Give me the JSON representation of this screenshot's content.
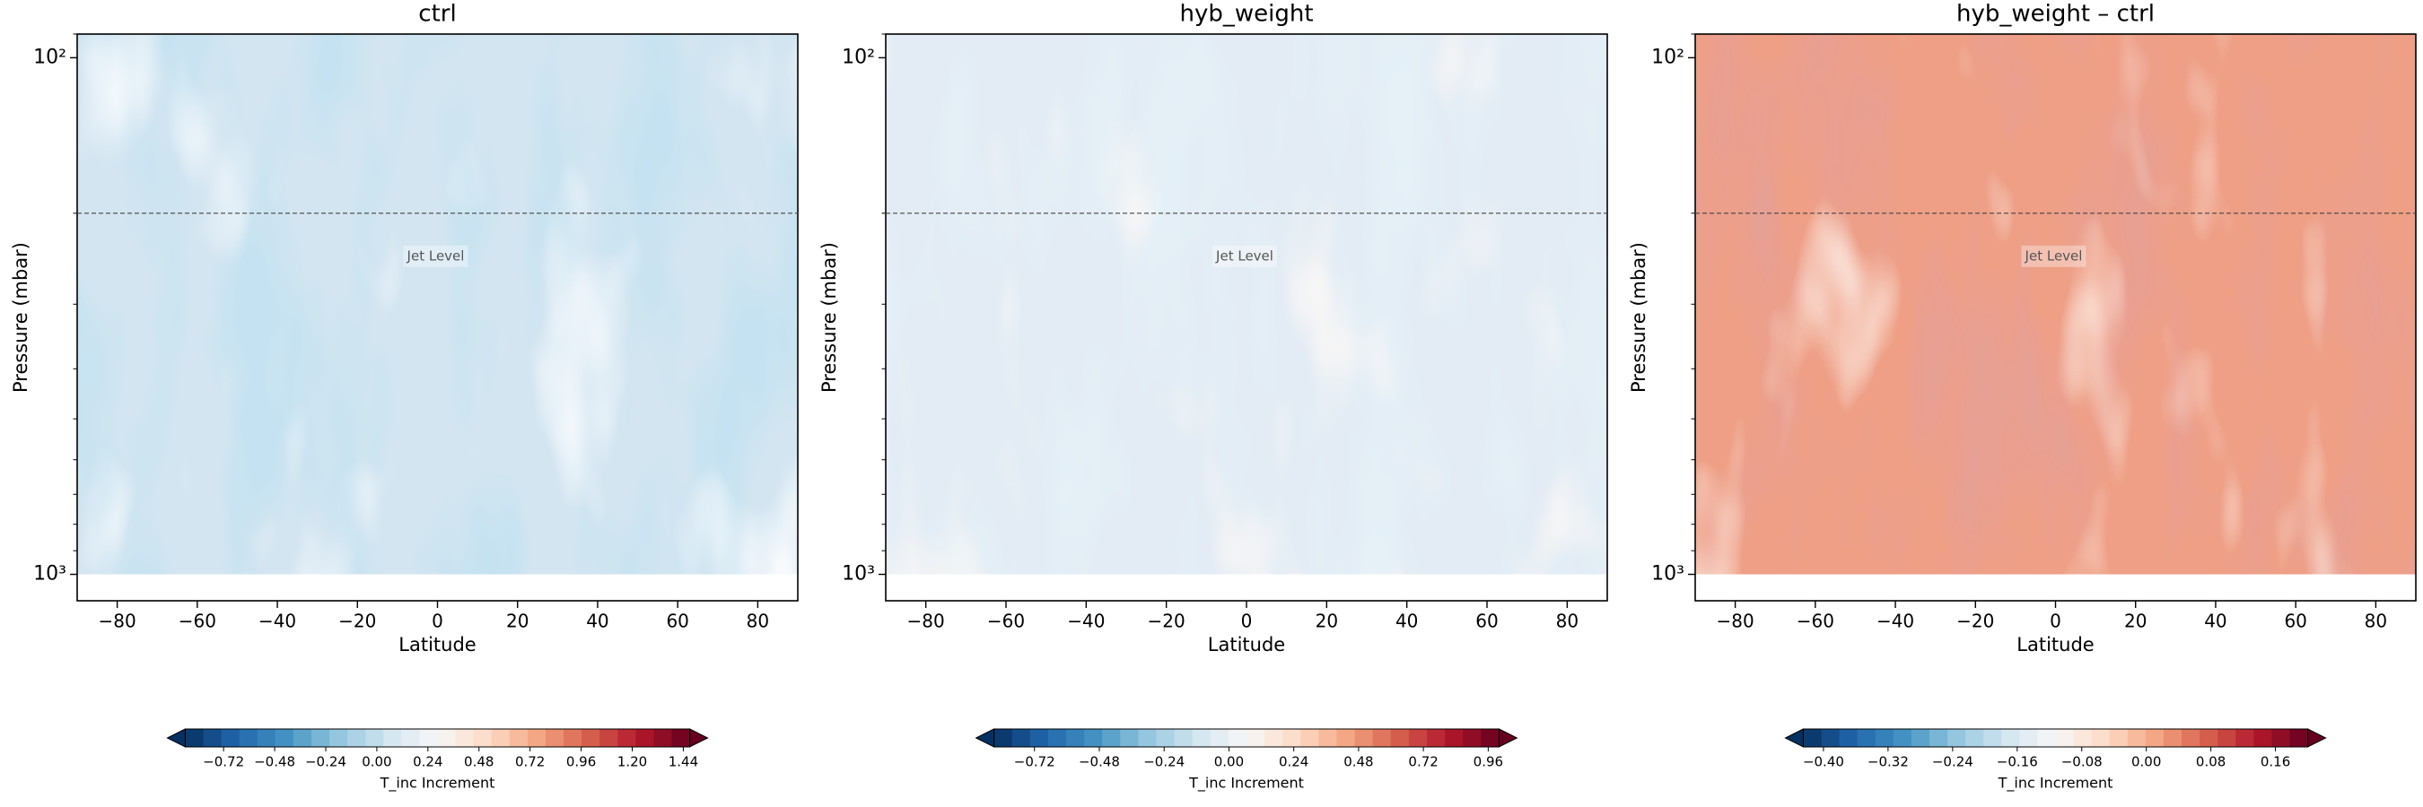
{
  "chart_data": [
    {
      "type": "contour",
      "title": "ctrl",
      "xlabel": "Latitude",
      "ylabel": "Pressure (mbar)",
      "xlim": [
        -90,
        90
      ],
      "xticks": [
        {
          "value": -80,
          "label": "−80"
        },
        {
          "value": -60,
          "label": "−60"
        },
        {
          "value": -40,
          "label": "−40"
        },
        {
          "value": -20,
          "label": "−20"
        },
        0,
        20,
        40,
        60,
        80
      ],
      "ylim": [
        1125,
        90
      ],
      "yscale": "log",
      "yticks": [
        {
          "value": 100,
          "label": "10²"
        },
        {
          "value": 1000,
          "label": "10³"
        }
      ],
      "hline": 200,
      "annotation": "Jet Level",
      "colorbar": {
        "label": "T_inc Increment",
        "cmap": "RdBu_r",
        "lim": [
          -0.9,
          1.47
        ],
        "ticks": [
          {
            "value": -0.72,
            "label": "−0.72"
          },
          {
            "value": -0.48,
            "label": "−0.48"
          },
          {
            "value": -0.24,
            "label": "−0.24"
          },
          {
            "value": 0,
            "label": "0.00"
          },
          0.24,
          0.48,
          0.72,
          0.96,
          {
            "value": 1.2,
            "label": "1.20"
          },
          1.44
        ]
      }
    },
    {
      "type": "contour",
      "title": "hyb_weight",
      "xlabel": "Latitude",
      "ylabel": "Pressure (mbar)",
      "xlim": [
        -90,
        90
      ],
      "xticks": [
        {
          "value": -80,
          "label": "−80"
        },
        {
          "value": -60,
          "label": "−60"
        },
        {
          "value": -40,
          "label": "−40"
        },
        {
          "value": -20,
          "label": "−20"
        },
        0,
        20,
        40,
        60,
        80
      ],
      "ylim": [
        1125,
        90
      ],
      "yscale": "log",
      "yticks": [
        {
          "value": 100,
          "label": "10²"
        },
        {
          "value": 1000,
          "label": "10³"
        }
      ],
      "hline": 200,
      "annotation": "Jet Level",
      "colorbar": {
        "label": "T_inc Increment",
        "cmap": "RdBu_r",
        "lim": [
          -0.87,
          1.0
        ],
        "ticks": [
          {
            "value": -0.72,
            "label": "−0.72"
          },
          {
            "value": -0.48,
            "label": "−0.48"
          },
          {
            "value": -0.24,
            "label": "−0.24"
          },
          {
            "value": 0,
            "label": "0.00"
          },
          0.24,
          0.48,
          0.72,
          0.96
        ]
      }
    },
    {
      "type": "contour",
      "title": "hyb_weight – ctrl",
      "xlabel": "Latitude",
      "ylabel": "Pressure (mbar)",
      "xlim": [
        -90,
        90
      ],
      "xticks": [
        {
          "value": -80,
          "label": "−80"
        },
        {
          "value": -60,
          "label": "−60"
        },
        {
          "value": -40,
          "label": "−40"
        },
        {
          "value": -20,
          "label": "−20"
        },
        0,
        20,
        40,
        60,
        80
      ],
      "ylim": [
        1125,
        90
      ],
      "yscale": "log",
      "yticks": [
        {
          "value": 100,
          "label": "10²"
        },
        {
          "value": 1000,
          "label": "10³"
        }
      ],
      "hline": 200,
      "annotation": "Jet Level",
      "colorbar": {
        "label": "T_inc Increment",
        "cmap": "RdBu_r",
        "lim": [
          -0.425,
          0.2
        ],
        "ticks": [
          {
            "value": -0.4,
            "label": "−0.40"
          },
          {
            "value": -0.32,
            "label": "−0.32"
          },
          {
            "value": -0.24,
            "label": "−0.24"
          },
          {
            "value": -0.16,
            "label": "−0.16"
          },
          {
            "value": -0.08,
            "label": "−0.08"
          },
          {
            "value": 0,
            "label": "0.00"
          },
          0.08,
          0.16
        ]
      }
    }
  ]
}
